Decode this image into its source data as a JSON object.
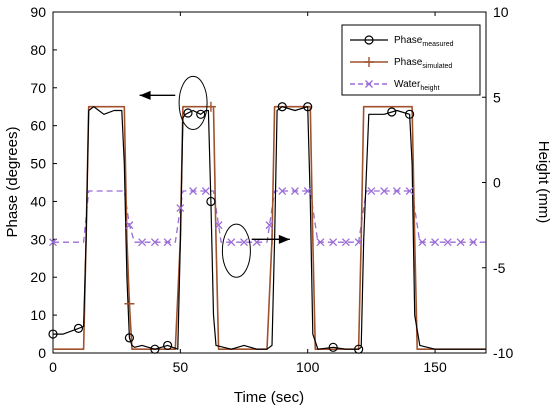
{
  "chart_data": {
    "type": "line",
    "title": "",
    "xlabel": "Time (sec)",
    "ylabel": "Phase (degrees)",
    "y2label": "Height (mm)",
    "xlim": [
      0,
      170
    ],
    "ylim": [
      0,
      90
    ],
    "y2lim": [
      -10,
      10
    ],
    "x_ticks": [
      "0",
      "50",
      "100",
      "150"
    ],
    "y_ticks": [
      "0",
      "10",
      "20",
      "30",
      "40",
      "50",
      "60",
      "70",
      "80",
      "90"
    ],
    "y2_ticks": [
      "-10",
      "-5",
      "0",
      "5",
      "10"
    ],
    "grid": false,
    "legend_position": "top-right",
    "legend": [
      {
        "base": "Phase",
        "sub": "measured"
      },
      {
        "base": "Phase",
        "sub": "simulated"
      },
      {
        "base": "Water",
        "sub": "height"
      }
    ],
    "colors": {
      "measured": "#000000",
      "simulated": "#a0522d",
      "water": "#9a6cd6"
    },
    "series": [
      {
        "name": "Phase measured",
        "axis": "left",
        "x": [
          0,
          4,
          8,
          10,
          12,
          13,
          14,
          16,
          18,
          20,
          24,
          27,
          28,
          29,
          30,
          31,
          32,
          35,
          40,
          45,
          47,
          49,
          50,
          51,
          52,
          55,
          58,
          60,
          61,
          62,
          63,
          64,
          70,
          75,
          80,
          84,
          86,
          87,
          88,
          90,
          95,
          100,
          101,
          102,
          104,
          110,
          115,
          120,
          121,
          122,
          124,
          130,
          135,
          140,
          141,
          142,
          144,
          150,
          160,
          170
        ],
        "y": [
          5,
          5,
          6,
          6.5,
          7,
          30,
          64,
          65,
          64,
          63,
          64,
          64,
          50,
          20,
          4,
          2,
          1.5,
          2,
          1,
          2,
          1.5,
          1,
          30,
          62,
          63,
          64,
          63,
          64,
          64,
          40,
          10,
          2,
          1,
          2,
          1,
          1,
          2,
          30,
          64,
          65,
          64,
          65,
          40,
          5,
          1,
          1.5,
          1,
          1,
          1.5,
          30,
          63,
          63,
          64,
          63,
          50,
          10,
          2,
          1,
          1,
          1
        ]
      },
      {
        "name": "Phase simulated",
        "axis": "left",
        "x": [
          0,
          12,
          13,
          14,
          28,
          29,
          30,
          31,
          48,
          50,
          51,
          63,
          64,
          65,
          84,
          86,
          87,
          101,
          102,
          103,
          120,
          121,
          122,
          141,
          142,
          143,
          170
        ],
        "y": [
          1,
          1,
          30,
          65,
          65,
          30,
          13,
          1,
          1,
          30,
          65,
          65,
          30,
          1,
          1,
          30,
          65,
          65,
          30,
          1,
          1,
          30,
          65,
          65,
          30,
          1,
          1
        ]
      },
      {
        "name": "Water height",
        "axis": "right",
        "x": [
          0,
          12,
          14,
          28,
          30,
          32,
          48,
          51,
          63,
          66,
          84,
          87,
          101,
          104,
          120,
          123,
          141,
          144,
          170
        ],
        "y": [
          -3.5,
          -3.5,
          -0.5,
          -0.5,
          -2.5,
          -3.5,
          -3.5,
          -0.5,
          -0.5,
          -3.5,
          -3.5,
          -0.5,
          -0.5,
          -3.5,
          -3.5,
          -0.5,
          -0.5,
          -3.5,
          -3.5
        ]
      }
    ],
    "markers": {
      "measured": {
        "x": [
          0,
          10,
          30,
          40,
          45,
          53,
          58,
          62,
          90,
          100,
          110,
          120,
          133,
          140
        ]
      },
      "simulated": {
        "x": [
          30,
          62,
          86
        ]
      },
      "water": {
        "x": [
          0,
          30,
          35,
          40,
          45,
          50,
          55,
          60,
          65,
          70,
          75,
          80,
          85,
          90,
          95,
          100,
          105,
          110,
          115,
          120,
          125,
          130,
          135,
          140,
          145,
          150,
          155,
          160,
          165
        ]
      }
    },
    "annotations": [
      {
        "kind": "ellipse",
        "cx": 55,
        "cy": 66,
        "rx": 5.5,
        "ry": 7
      },
      {
        "kind": "arrow",
        "from": [
          48,
          68
        ],
        "to": [
          34,
          68
        ]
      },
      {
        "kind": "ellipse",
        "cx": 72,
        "cy": 27,
        "rx": 5.5,
        "ry": 7
      },
      {
        "kind": "arrow",
        "from": [
          78,
          30
        ],
        "to": [
          93,
          30
        ]
      }
    ]
  }
}
